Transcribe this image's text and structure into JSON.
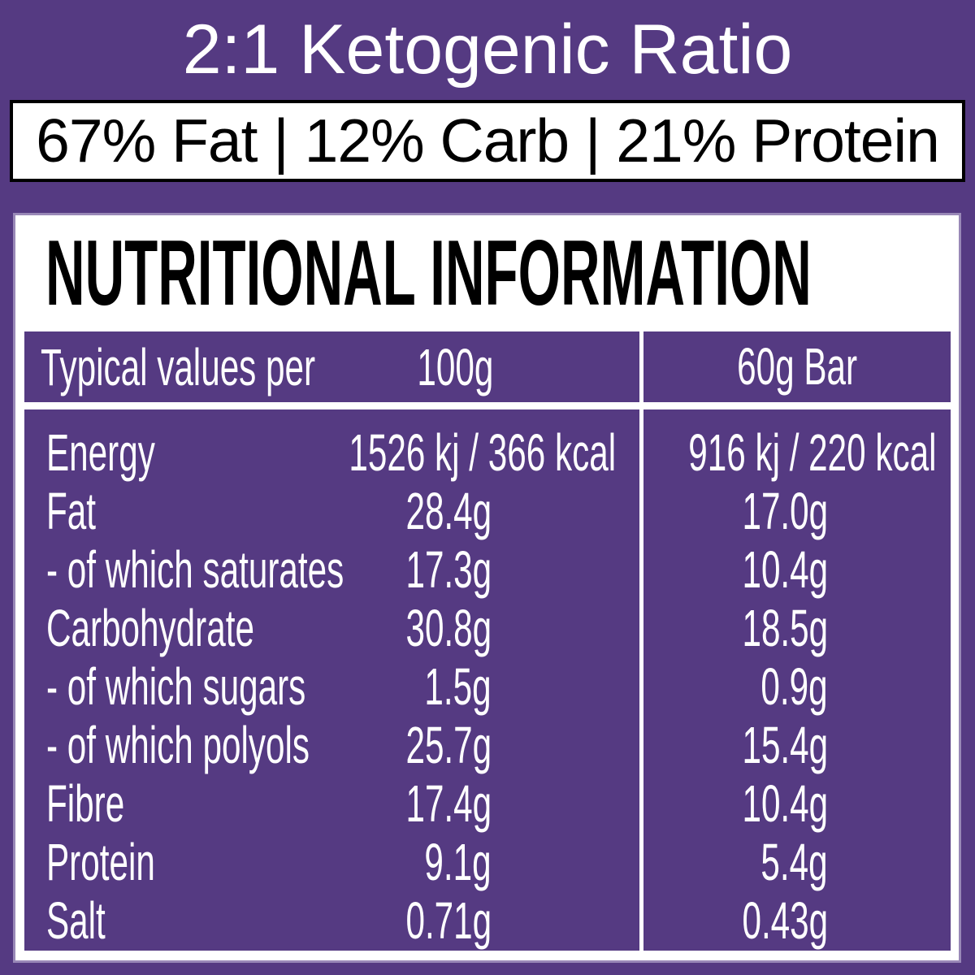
{
  "title": "2:1 Ketogenic Ratio",
  "macro_summary": "67% Fat | 12% Carb | 21% Protein",
  "panel": {
    "heading": "NUTRITIONAL INFORMATION",
    "table": {
      "header": {
        "label": "Typical values per",
        "col_100g": "100g",
        "col_bar": "60g Bar"
      },
      "rows": [
        {
          "label": "Energy",
          "per_100g": "1526 kj / 366 kcal",
          "per_bar": "916 kj / 220 kcal"
        },
        {
          "label": "Fat",
          "per_100g": "28.4g",
          "per_bar": "17.0g"
        },
        {
          "label": "- of which saturates",
          "per_100g": "17.3g",
          "per_bar": "10.4g"
        },
        {
          "label": "Carbohydrate",
          "per_100g": "30.8g",
          "per_bar": "18.5g"
        },
        {
          "label": "- of which sugars",
          "per_100g": "1.5g",
          "per_bar": "0.9g"
        },
        {
          "label": "- of which polyols",
          "per_100g": "25.7g",
          "per_bar": "15.4g"
        },
        {
          "label": "Fibre",
          "per_100g": "17.4g",
          "per_bar": "10.4g"
        },
        {
          "label": "Protein",
          "per_100g": "9.1g",
          "per_bar": "5.4g"
        },
        {
          "label": "Salt",
          "per_100g": "0.71g",
          "per_bar": "0.43g"
        }
      ]
    }
  },
  "colors": {
    "background_purple": "#553a82",
    "panel_white": "#ffffff",
    "text_black": "#000000",
    "text_white": "#ffffff",
    "border_black": "#000000"
  }
}
